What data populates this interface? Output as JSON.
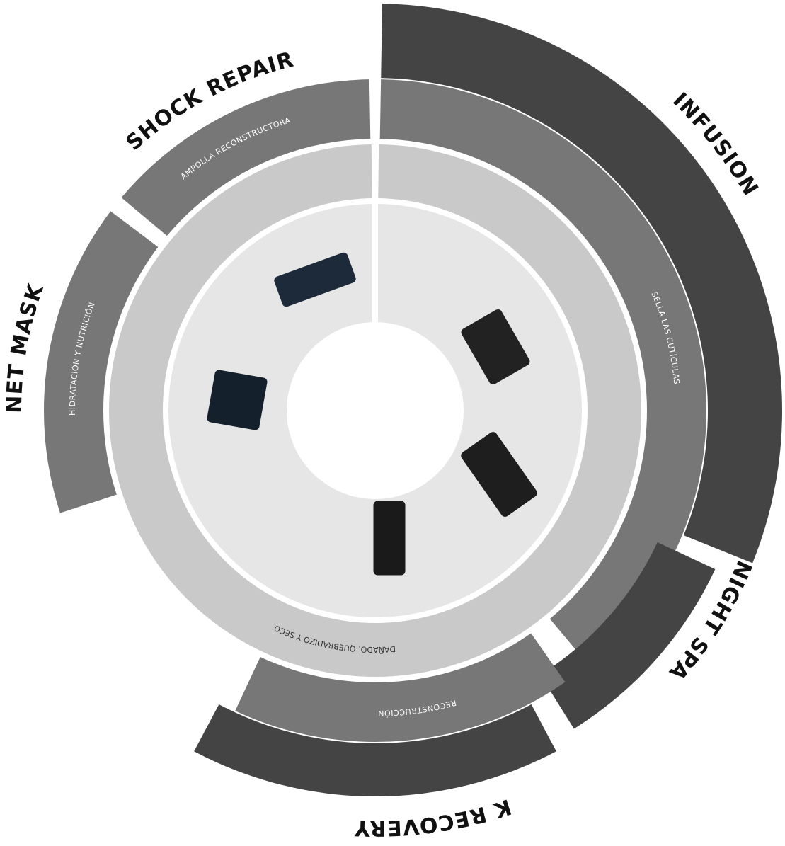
{
  "segments": [
    {
      "label": "SHOCK REPAIR",
      "description": "AMPOLLA RECONSTRUCTORA"
    },
    {
      "label": "NET MASK",
      "description": "HIDRATACIÓN Y NUTRICIÓN"
    },
    {
      "label": "INFUSION",
      "description": "SELLA LAS CUTÍCULAS"
    },
    {
      "label": "NIGHT SPA"
    },
    {
      "label": "K RECOVERY",
      "description": "RECONSTRUCCIÓN"
    }
  ],
  "inner_ring_label": "DAÑADO, QUEBRADIZO Y SECO"
}
